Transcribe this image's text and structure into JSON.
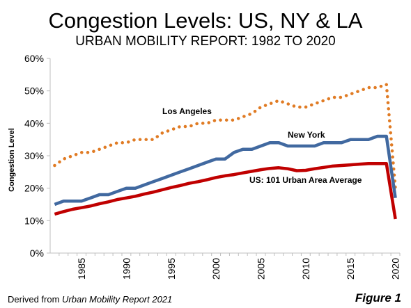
{
  "chart_data": {
    "type": "line",
    "title": "Congestion Levels: US, NY & LA",
    "subtitle": "URBAN MOBILITY REPORT: 1982 TO 2020",
    "ylabel": "Congestion Level",
    "xlabel": "",
    "x": [
      1982,
      1983,
      1984,
      1985,
      1986,
      1987,
      1988,
      1989,
      1990,
      1991,
      1992,
      1993,
      1994,
      1995,
      1996,
      1997,
      1998,
      1999,
      2000,
      2001,
      2002,
      2003,
      2004,
      2005,
      2006,
      2007,
      2008,
      2009,
      2010,
      2011,
      2012,
      2013,
      2014,
      2015,
      2016,
      2017,
      2018,
      2019,
      2020
    ],
    "xlim": [
      1981.5,
      2020.5
    ],
    "ylim": [
      0,
      60
    ],
    "y_ticks": [
      0,
      10,
      20,
      30,
      40,
      50,
      60
    ],
    "y_tick_labels": [
      "0%",
      "10%",
      "20%",
      "30%",
      "40%",
      "50%",
      "60%"
    ],
    "x_ticks": [
      1985,
      1990,
      1995,
      2000,
      2005,
      2010,
      2015,
      2020
    ],
    "x_tick_labels": [
      "1985",
      "1990",
      "1995",
      "2000",
      "2005",
      "2010",
      "2015",
      "2020"
    ],
    "grid": false,
    "legend": "none",
    "series": [
      {
        "name": "Los Angeles",
        "color": "#E07B24",
        "style": "dotted",
        "values": [
          27,
          29,
          30,
          31,
          31,
          32,
          33,
          34,
          34,
          35,
          35,
          35,
          37,
          38,
          39,
          39,
          40,
          40,
          41,
          41,
          41,
          42,
          43,
          45,
          46,
          47,
          46,
          45,
          45,
          46,
          47,
          48,
          48,
          49,
          50,
          51,
          51,
          52,
          20
        ]
      },
      {
        "name": "New York",
        "color": "#4169A0",
        "style": "solid",
        "values": [
          15,
          16,
          16,
          16,
          17,
          18,
          18,
          19,
          20,
          20,
          21,
          22,
          23,
          24,
          25,
          26,
          27,
          28,
          29,
          29,
          31,
          32,
          32,
          33,
          34,
          34,
          33,
          33,
          33,
          33,
          34,
          34,
          34,
          35,
          35,
          35,
          36,
          36,
          17
        ]
      },
      {
        "name": "US: 101 Urban Area Average",
        "color": "#C00000",
        "style": "solid",
        "values": [
          12,
          12.8,
          13.5,
          14,
          14.5,
          15.2,
          15.8,
          16.5,
          17,
          17.5,
          18.2,
          18.8,
          19.5,
          20.2,
          20.8,
          21.5,
          22,
          22.6,
          23.3,
          23.8,
          24.2,
          24.7,
          25.2,
          25.7,
          26.1,
          26.3,
          26,
          25.4,
          25.5,
          26,
          26.4,
          26.8,
          27,
          27.2,
          27.4,
          27.6,
          27.6,
          27.6,
          10.5
        ]
      }
    ]
  },
  "footer": {
    "derived_prefix": "Derived from ",
    "derived_source": "Urban Mobility Report 2021",
    "figure_label": "Figure 1"
  },
  "colors": {
    "axis": "#BFBFBF",
    "la": "#E07B24",
    "ny": "#4169A0",
    "us": "#C00000"
  }
}
